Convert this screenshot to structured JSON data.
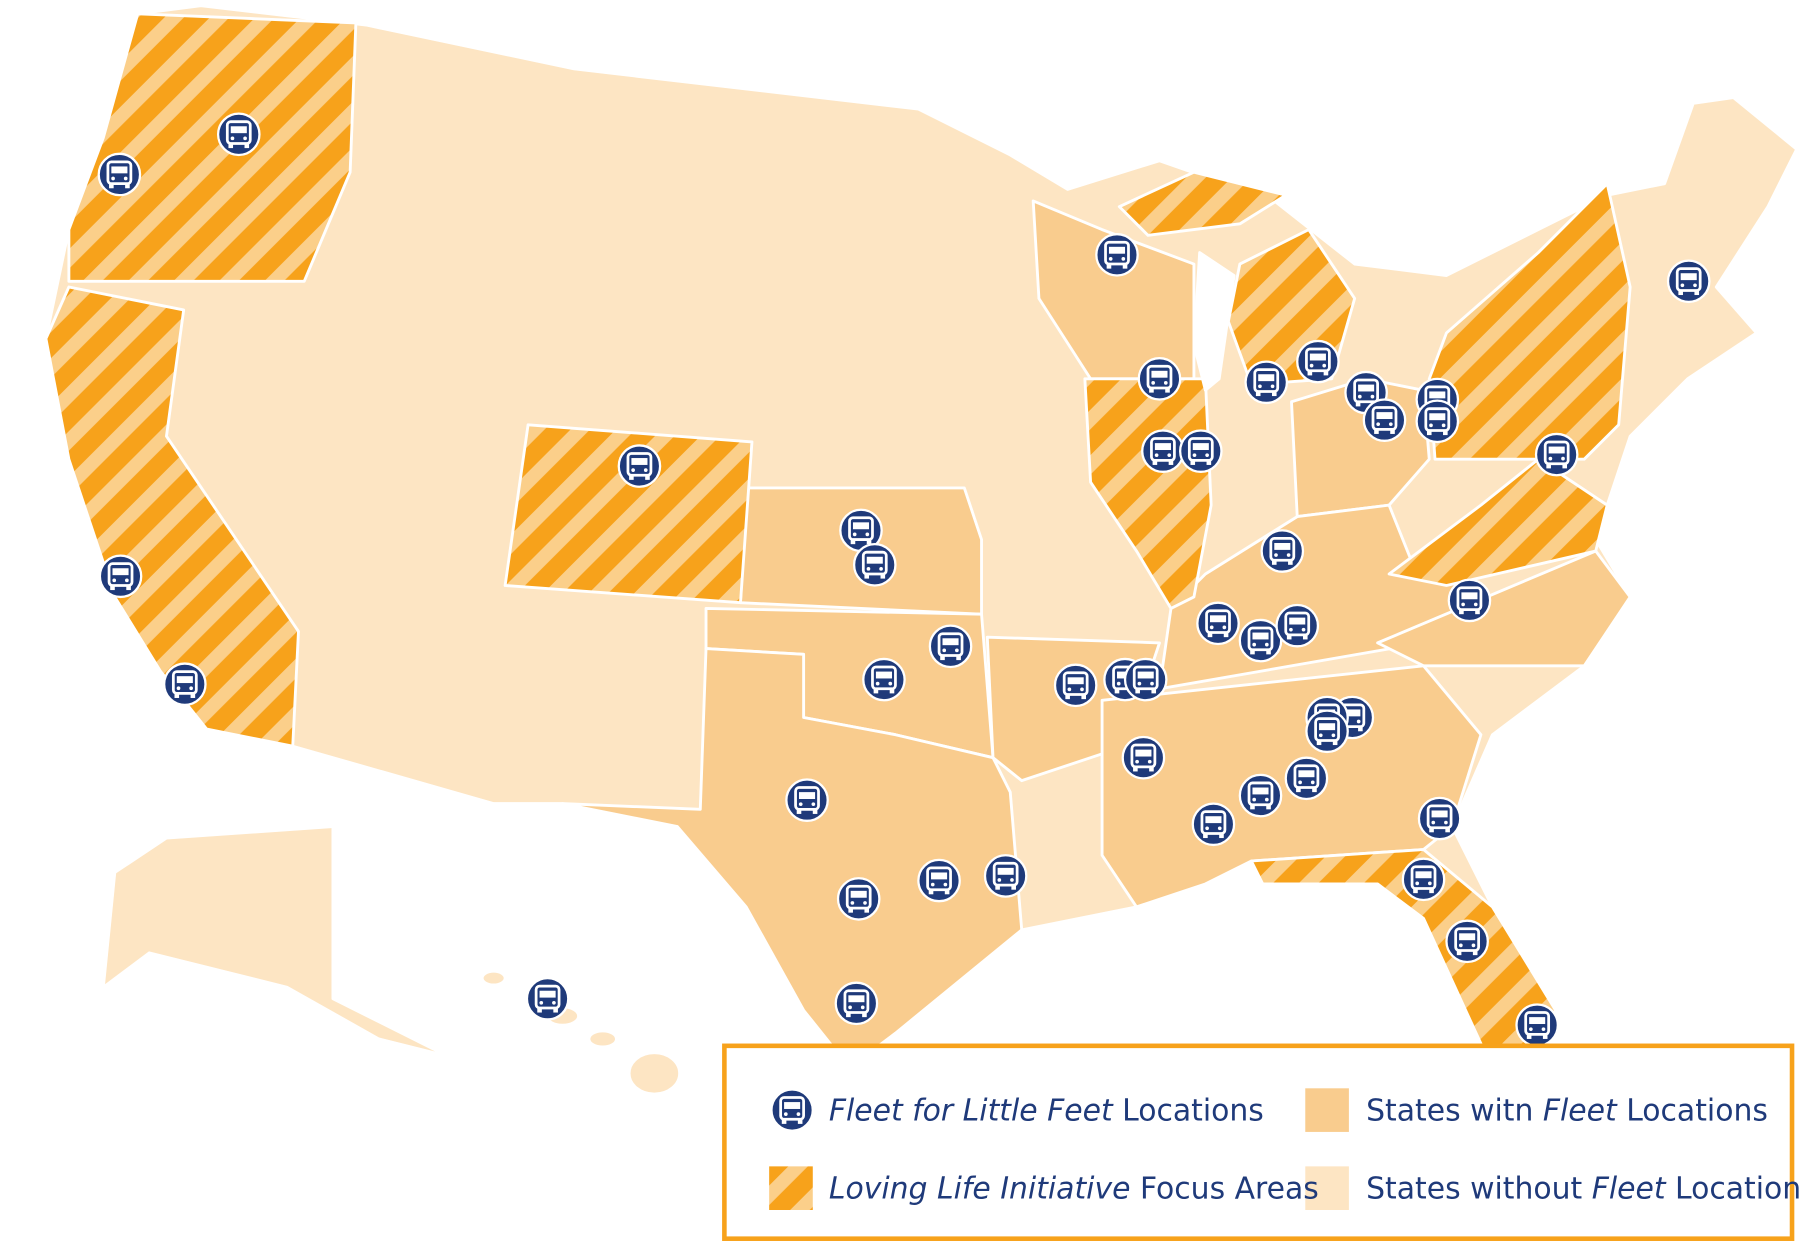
{
  "legend": [
    {
      "italic": "Fleet for Little Feet",
      "text": "Locations"
    },
    {
      "italic": "Loving Life Initiative",
      "text": "Focus Areas"
    },
    {
      "text": "States witn",
      "italic": "Fleet",
      "after": "Locations"
    },
    {
      "text": "States without",
      "italic": "Fleet",
      "after": "Locations"
    }
  ]
}
